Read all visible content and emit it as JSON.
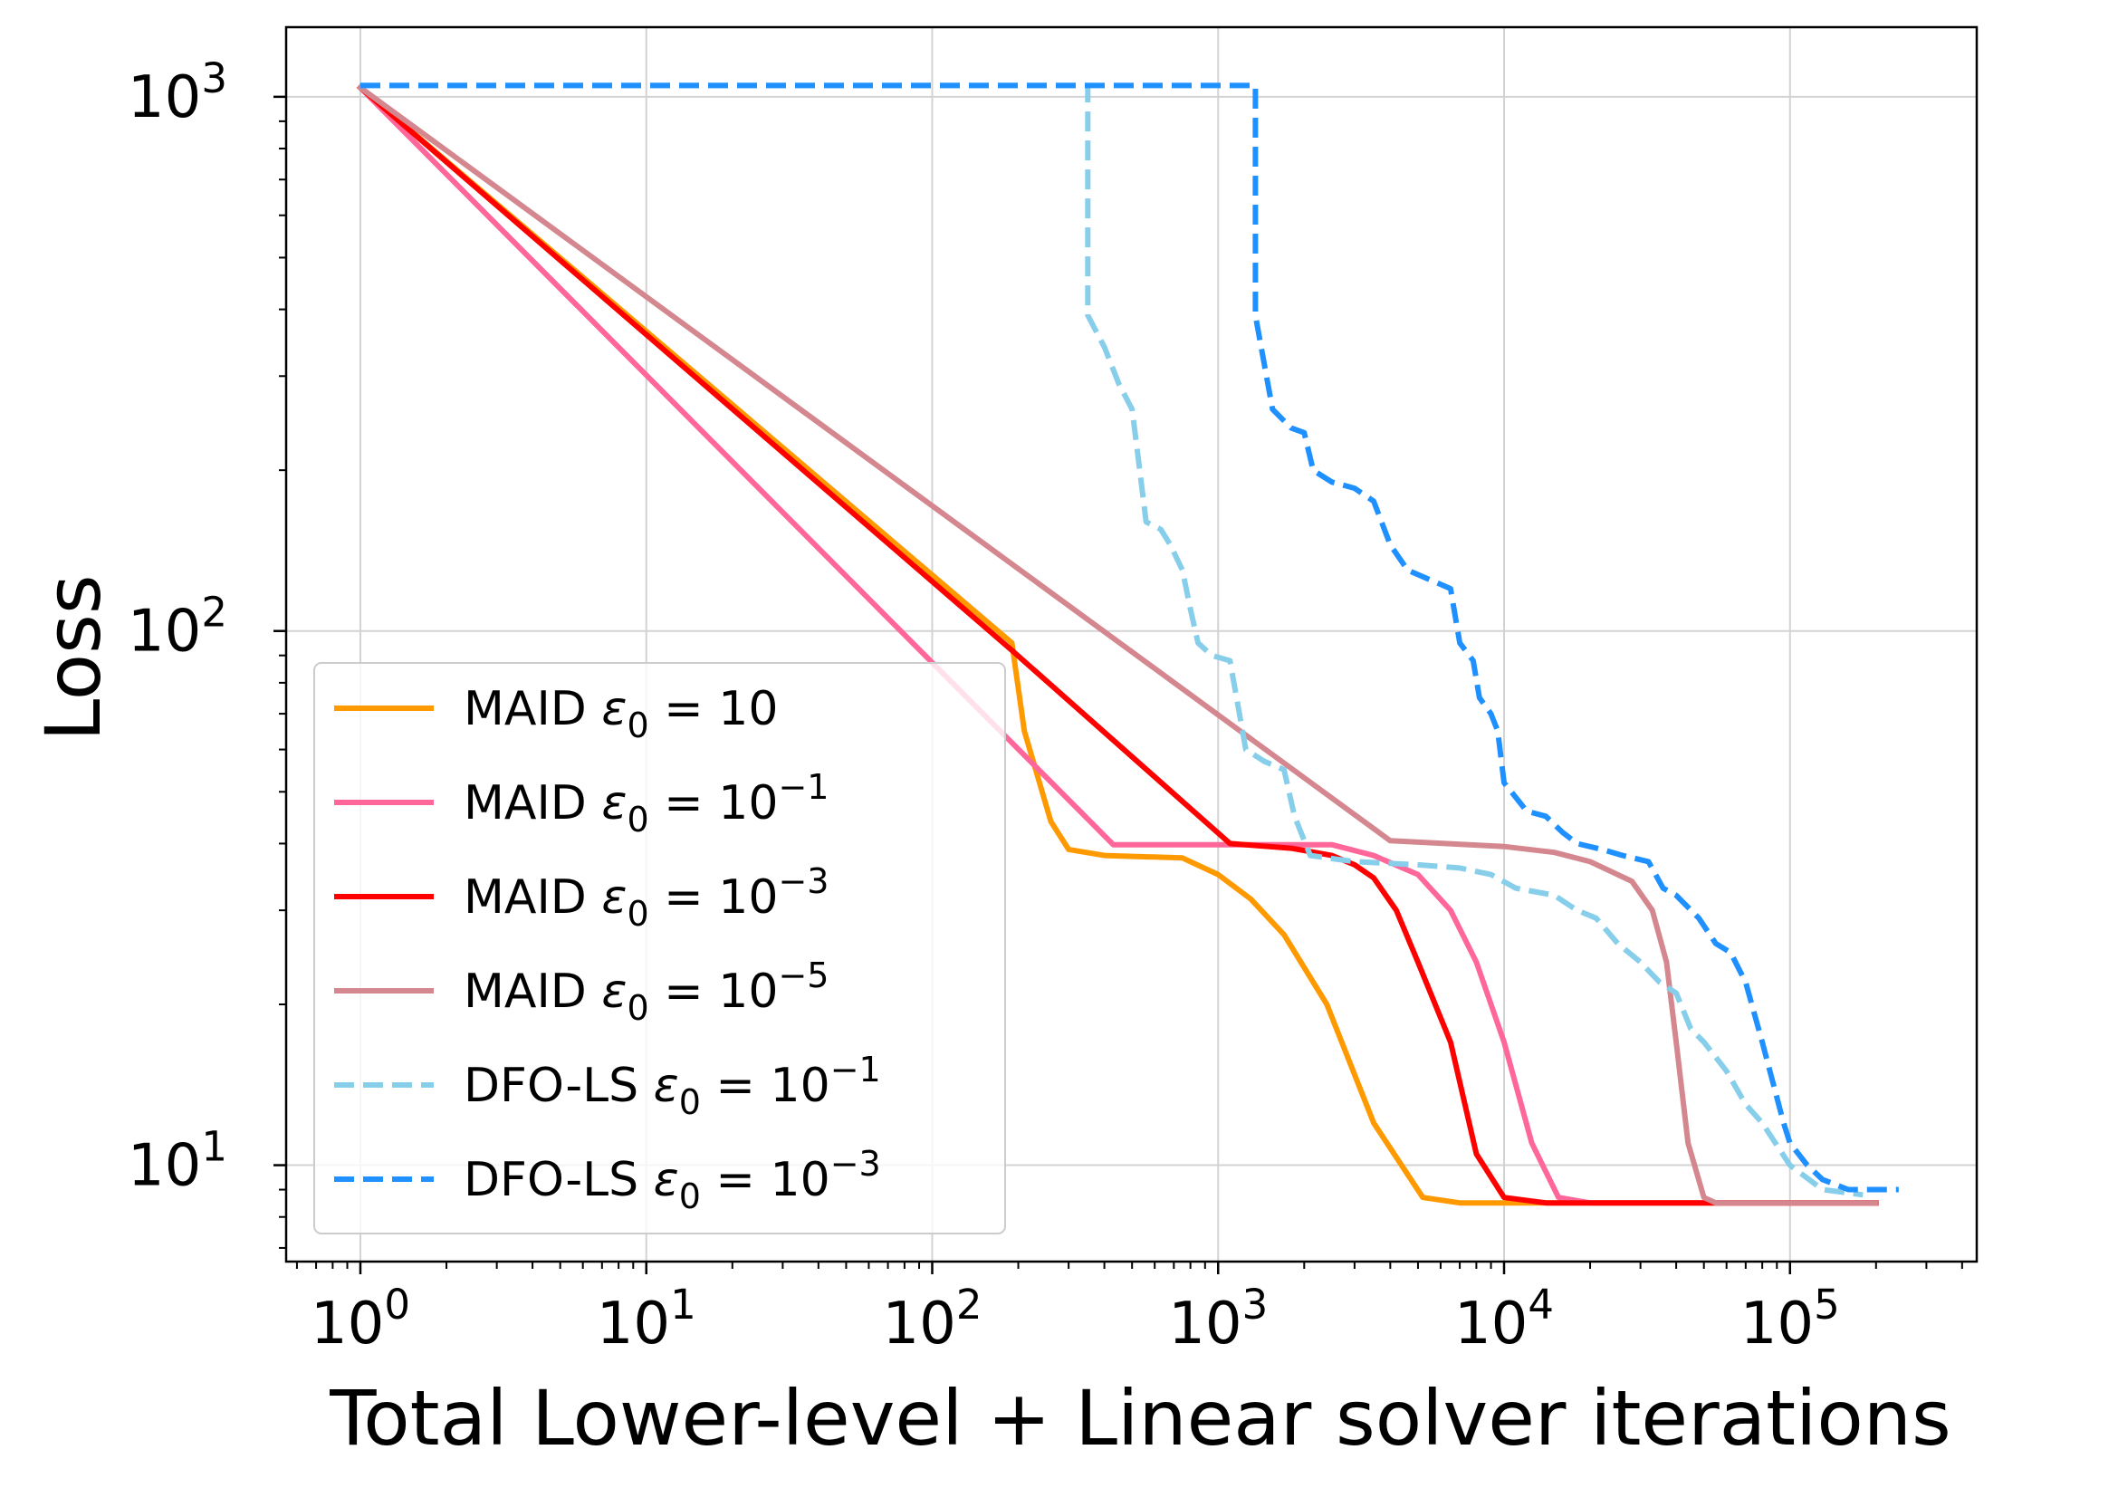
{
  "chart_data": {
    "type": "line",
    "xlabel": "Total Lower-level + Linear solver iterations",
    "ylabel": "Loss",
    "xscale": "log",
    "yscale": "log",
    "xlim": [
      0.55,
      450000
    ],
    "ylim": [
      6.6,
      1350
    ],
    "grid": true,
    "legend_position": "lower-left",
    "x_ticks": [
      1,
      10,
      100,
      1000,
      10000,
      100000
    ],
    "x_tick_labels": [
      {
        "base": "10",
        "exp": "0"
      },
      {
        "base": "10",
        "exp": "1"
      },
      {
        "base": "10",
        "exp": "2"
      },
      {
        "base": "10",
        "exp": "3"
      },
      {
        "base": "10",
        "exp": "4"
      },
      {
        "base": "10",
        "exp": "5"
      }
    ],
    "y_ticks": [
      10,
      100,
      1000
    ],
    "y_tick_labels": [
      {
        "base": "10",
        "exp": "1"
      },
      {
        "base": "10",
        "exp": "2"
      },
      {
        "base": "10",
        "exp": "3"
      }
    ],
    "series": [
      {
        "name": "MAID ε0 = 10",
        "legend": {
          "method": "MAID",
          "base": "10",
          "exp": ""
        },
        "color": "#FF9900",
        "dashed": false,
        "points": [
          [
            1,
            1040
          ],
          [
            190,
            95
          ],
          [
            210,
            65
          ],
          [
            260,
            44
          ],
          [
            300,
            39
          ],
          [
            400,
            38
          ],
          [
            750,
            37.6
          ],
          [
            1000,
            35
          ],
          [
            1300,
            31.5
          ],
          [
            1700,
            27
          ],
          [
            2400,
            20
          ],
          [
            3500,
            12
          ],
          [
            5200,
            8.7
          ],
          [
            7000,
            8.5
          ],
          [
            20000,
            8.5
          ],
          [
            200000,
            8.5
          ]
        ]
      },
      {
        "name": "MAID ε0 = 10⁻¹",
        "legend": {
          "method": "MAID",
          "base": "10",
          "exp": "−1"
        },
        "color": "#FF6699",
        "dashed": false,
        "points": [
          [
            1,
            1040
          ],
          [
            430,
            39.8
          ],
          [
            2500,
            39.8
          ],
          [
            3500,
            38
          ],
          [
            5000,
            35
          ],
          [
            6500,
            30
          ],
          [
            8000,
            24
          ],
          [
            10000,
            17
          ],
          [
            12500,
            11
          ],
          [
            15500,
            8.7
          ],
          [
            20000,
            8.5
          ],
          [
            200000,
            8.5
          ]
        ]
      },
      {
        "name": "MAID ε0 = 10⁻³",
        "legend": {
          "method": "MAID",
          "base": "10",
          "exp": "−3"
        },
        "color": "#FF0000",
        "dashed": false,
        "points": [
          [
            1,
            1040
          ],
          [
            190,
            92
          ],
          [
            1100,
            40
          ],
          [
            1800,
            39.2
          ],
          [
            2500,
            38
          ],
          [
            3000,
            36.5
          ],
          [
            3500,
            34.5
          ],
          [
            4200,
            30
          ],
          [
            5000,
            24
          ],
          [
            6500,
            17
          ],
          [
            8000,
            10.5
          ],
          [
            10000,
            8.7
          ],
          [
            14000,
            8.5
          ],
          [
            200000,
            8.5
          ]
        ]
      },
      {
        "name": "MAID ε0 = 10⁻⁵",
        "legend": {
          "method": "MAID",
          "base": "10",
          "exp": "−5"
        },
        "color": "#D4878F",
        "dashed": false,
        "points": [
          [
            1,
            1040
          ],
          [
            4000,
            40.5
          ],
          [
            10000,
            39.5
          ],
          [
            15000,
            38.5
          ],
          [
            20000,
            37
          ],
          [
            28000,
            34
          ],
          [
            33000,
            30
          ],
          [
            37000,
            24
          ],
          [
            40000,
            17
          ],
          [
            44000,
            11
          ],
          [
            50000,
            8.7
          ],
          [
            55000,
            8.5
          ],
          [
            200000,
            8.5
          ]
        ]
      },
      {
        "name": "DFO-LS ε0 = 10⁻¹",
        "legend": {
          "method": "DFO-LS",
          "base": "10",
          "exp": "−1"
        },
        "color": "#87CEEB",
        "dashed": true,
        "points": [
          [
            1,
            1050
          ],
          [
            350,
            1050
          ],
          [
            350,
            390
          ],
          [
            400,
            340
          ],
          [
            450,
            290
          ],
          [
            500,
            260
          ],
          [
            520,
            220
          ],
          [
            560,
            160
          ],
          [
            630,
            155
          ],
          [
            680,
            145
          ],
          [
            750,
            130
          ],
          [
            800,
            110
          ],
          [
            850,
            95
          ],
          [
            950,
            90
          ],
          [
            1100,
            88
          ],
          [
            1250,
            60
          ],
          [
            1450,
            57
          ],
          [
            1700,
            55
          ],
          [
            1850,
            45
          ],
          [
            2100,
            38
          ],
          [
            2500,
            37.5
          ],
          [
            3000,
            37
          ],
          [
            5000,
            36.5
          ],
          [
            7000,
            36
          ],
          [
            9000,
            35
          ],
          [
            11000,
            33
          ],
          [
            15000,
            32
          ],
          [
            18000,
            30
          ],
          [
            21000,
            29
          ],
          [
            25000,
            26
          ],
          [
            30000,
            24
          ],
          [
            35000,
            22
          ],
          [
            40000,
            21
          ],
          [
            45000,
            18
          ],
          [
            50000,
            17
          ],
          [
            60000,
            15
          ],
          [
            70000,
            13
          ],
          [
            80000,
            12
          ],
          [
            100000,
            10
          ],
          [
            130000,
            9
          ],
          [
            180000,
            8.8
          ]
        ]
      },
      {
        "name": "DFO-LS ε0 = 10⁻³",
        "legend": {
          "method": "DFO-LS",
          "base": "10",
          "exp": "−3"
        },
        "color": "#1E90FF",
        "dashed": true,
        "points": [
          [
            1,
            1050
          ],
          [
            1350,
            1050
          ],
          [
            1350,
            390
          ],
          [
            1400,
            350
          ],
          [
            1550,
            260
          ],
          [
            1800,
            240
          ],
          [
            2000,
            235
          ],
          [
            2150,
            200
          ],
          [
            2500,
            190
          ],
          [
            3000,
            185
          ],
          [
            3500,
            175
          ],
          [
            4000,
            145
          ],
          [
            4600,
            130
          ],
          [
            6500,
            120
          ],
          [
            7000,
            95
          ],
          [
            7800,
            88
          ],
          [
            8200,
            75
          ],
          [
            9000,
            70
          ],
          [
            9500,
            65
          ],
          [
            10000,
            52
          ],
          [
            12000,
            46
          ],
          [
            14000,
            45
          ],
          [
            16000,
            42
          ],
          [
            18000,
            40
          ],
          [
            22000,
            39
          ],
          [
            26000,
            38
          ],
          [
            32000,
            37
          ],
          [
            36000,
            33
          ],
          [
            40000,
            32
          ],
          [
            48000,
            29
          ],
          [
            55000,
            26
          ],
          [
            62000,
            25
          ],
          [
            70000,
            22
          ],
          [
            80000,
            17
          ],
          [
            95000,
            12
          ],
          [
            100000,
            11
          ],
          [
            115000,
            10
          ],
          [
            130000,
            9.4
          ],
          [
            160000,
            9
          ],
          [
            240000,
            9
          ]
        ]
      }
    ]
  }
}
